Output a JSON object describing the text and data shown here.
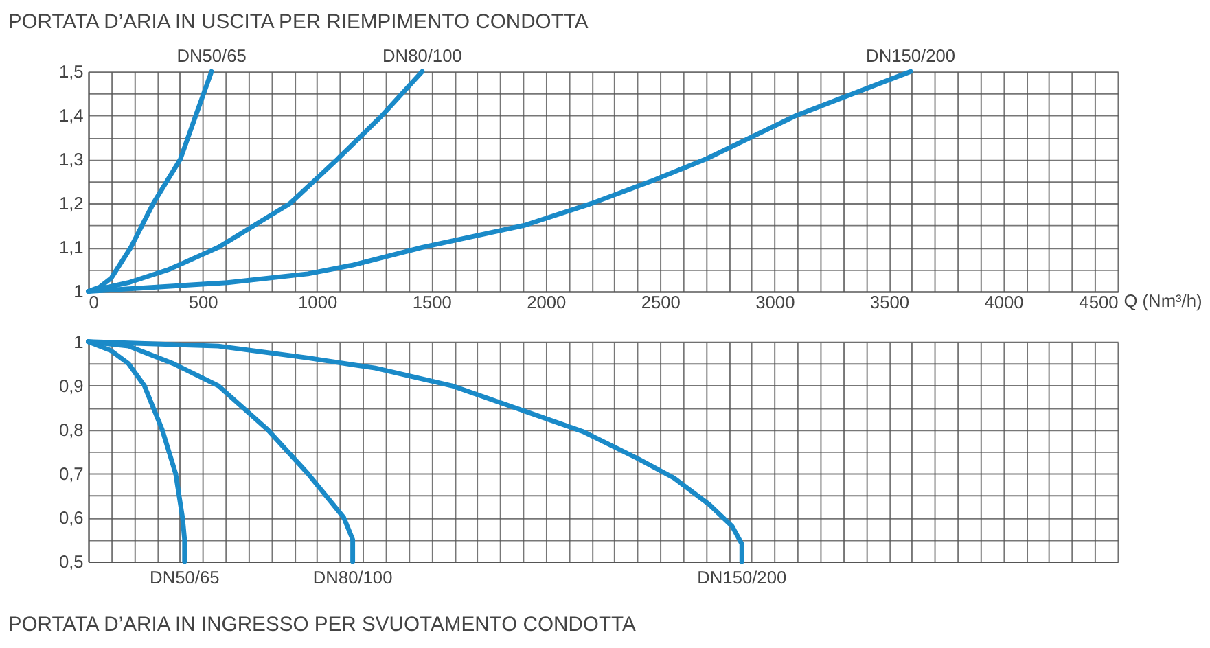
{
  "chart_data": [
    {
      "type": "line",
      "title": "PORTATA D’ARIA IN USCITA PER RIEMPIMENTO CONDOTTA",
      "xlabel": "Q (Nm³/h)",
      "xlim": [
        0,
        4500
      ],
      "ylim": [
        1,
        1.5
      ],
      "xticks": [
        0,
        {
          "value": 100,
          "label": null
        },
        {
          "value": 200,
          "label": null
        },
        {
          "value": 300,
          "label": null
        },
        {
          "value": 400,
          "label": null
        },
        500,
        {
          "value": 600,
          "label": null
        },
        {
          "value": 700,
          "label": null
        },
        {
          "value": 800,
          "label": null
        },
        {
          "value": 900,
          "label": null
        },
        1000,
        {
          "value": 1100,
          "label": null
        },
        {
          "value": 1200,
          "label": null
        },
        {
          "value": 1300,
          "label": null
        },
        {
          "value": 1400,
          "label": null
        },
        1500,
        {
          "value": 1600,
          "label": null
        },
        {
          "value": 1700,
          "label": null
        },
        {
          "value": 1800,
          "label": null
        },
        {
          "value": 1900,
          "label": null
        },
        2000,
        {
          "value": 2100,
          "label": null
        },
        {
          "value": 2200,
          "label": null
        },
        {
          "value": 2300,
          "label": null
        },
        {
          "value": 2400,
          "label": null
        },
        2500,
        {
          "value": 2600,
          "label": null
        },
        {
          "value": 2700,
          "label": null
        },
        {
          "value": 2800,
          "label": null
        },
        {
          "value": 2900,
          "label": null
        },
        3000,
        {
          "value": 3100,
          "label": null
        },
        {
          "value": 3200,
          "label": null
        },
        {
          "value": 3300,
          "label": null
        },
        {
          "value": 3400,
          "label": null
        },
        3500,
        {
          "value": 3600,
          "label": null
        },
        {
          "value": 3700,
          "label": null
        },
        {
          "value": 3800,
          "label": null
        },
        {
          "value": 3900,
          "label": null
        },
        4000,
        {
          "value": 4100,
          "label": null
        },
        {
          "value": 4200,
          "label": null
        },
        {
          "value": 4300,
          "label": null
        },
        {
          "value": 4400,
          "label": null
        },
        4500
      ],
      "yticks": [
        1,
        {
          "value": 1.05,
          "label": null
        },
        {
          "value": 1.1,
          "label": "1,1"
        },
        {
          "value": 1.15,
          "label": null
        },
        {
          "value": 1.2,
          "label": "1,2"
        },
        {
          "value": 1.25,
          "label": null
        },
        {
          "value": 1.3,
          "label": "1,3"
        },
        {
          "value": 1.35,
          "label": null
        },
        {
          "value": 1.4,
          "label": "1,4"
        },
        {
          "value": 1.45,
          "label": null
        },
        {
          "value": 1.5,
          "label": "1,5"
        }
      ],
      "grid": true,
      "legend": false,
      "line_style": "solid",
      "marker": "none",
      "series": [
        {
          "name": "DN50/65",
          "color": "#1a8ac8",
          "x": [
            0,
            50,
            100,
            186,
            284,
            402,
            470,
            539
          ],
          "values": [
            1,
            1.01,
            1.03,
            1.1,
            1.2,
            1.3,
            1.4,
            1.5
          ]
        },
        {
          "name": "DN80/100",
          "color": "#1a8ac8",
          "x": [
            0,
            176,
            353,
            568,
            882,
            1088,
            1284,
            1460
          ],
          "values": [
            1,
            1.02,
            1.05,
            1.1,
            1.2,
            1.3,
            1.4,
            1.5
          ]
        },
        {
          "name": "DN150/200",
          "color": "#1a8ac8",
          "x": [
            0,
            608,
            960,
            1157,
            1460,
            1905,
            2200,
            2458,
            2696,
            3095,
            3595
          ],
          "values": [
            1,
            1.02,
            1.04,
            1.06,
            1.1,
            1.15,
            1.2,
            1.25,
            1.3,
            1.4,
            1.5
          ]
        }
      ]
    },
    {
      "type": "line",
      "title": "PORTATA D’ARIA IN INGRESSO PER SVUOTAMENTO CONDOTTA",
      "xlim": [
        0,
        4500
      ],
      "ylim": [
        0.5,
        1
      ],
      "tick_labels": "y",
      "xticks": [
        0,
        100,
        200,
        300,
        400,
        500,
        600,
        700,
        800,
        900,
        1000,
        1100,
        1200,
        1300,
        1400,
        1500,
        1600,
        1700,
        1800,
        1900,
        2000,
        2100,
        2200,
        2300,
        2400,
        2500,
        2600,
        2700,
        2800,
        2900,
        3000,
        3100,
        3200,
        3300,
        3400,
        3500,
        3600,
        3700,
        3800,
        3900,
        4000,
        4100,
        4200,
        4300,
        4400,
        4500
      ],
      "yticks": [
        {
          "value": 0.5,
          "label": "0,5"
        },
        {
          "value": 0.55,
          "label": null
        },
        {
          "value": 0.6,
          "label": "0,6"
        },
        {
          "value": 0.65,
          "label": null
        },
        {
          "value": 0.7,
          "label": "0,7"
        },
        {
          "value": 0.75,
          "label": null
        },
        {
          "value": 0.8,
          "label": "0,8"
        },
        {
          "value": 0.85,
          "label": null
        },
        {
          "value": 0.9,
          "label": "0,9"
        },
        {
          "value": 0.95,
          "label": null
        },
        1
      ],
      "grid": true,
      "legend": false,
      "line_style": "solid",
      "marker": "none",
      "series": [
        {
          "name": "DN50/65",
          "color": "#1a8ac8",
          "x": [
            0,
            98,
            176,
            245,
            323,
            382,
            412,
            421,
            421
          ],
          "values": [
            1,
            0.98,
            0.95,
            0.9,
            0.8,
            0.7,
            0.6,
            0.55,
            0.5
          ]
        },
        {
          "name": "DN80/100",
          "color": "#1a8ac8",
          "x": [
            0,
            176,
            372,
            568,
            784,
            960,
            1117,
            1156,
            1156
          ],
          "values": [
            1,
            0.99,
            0.95,
            0.9,
            0.8,
            0.7,
            0.6,
            0.55,
            0.5
          ]
        },
        {
          "name": "DN150/200",
          "color": "#1a8ac8",
          "x": [
            0,
            568,
            960,
            1254,
            1588,
            2161,
            2399,
            2560,
            2714,
            2815,
            2857,
            2857
          ],
          "values": [
            1,
            0.99,
            0.963,
            0.94,
            0.9,
            0.796,
            0.735,
            0.69,
            0.63,
            0.58,
            0.54,
            0.5
          ]
        }
      ]
    }
  ]
}
